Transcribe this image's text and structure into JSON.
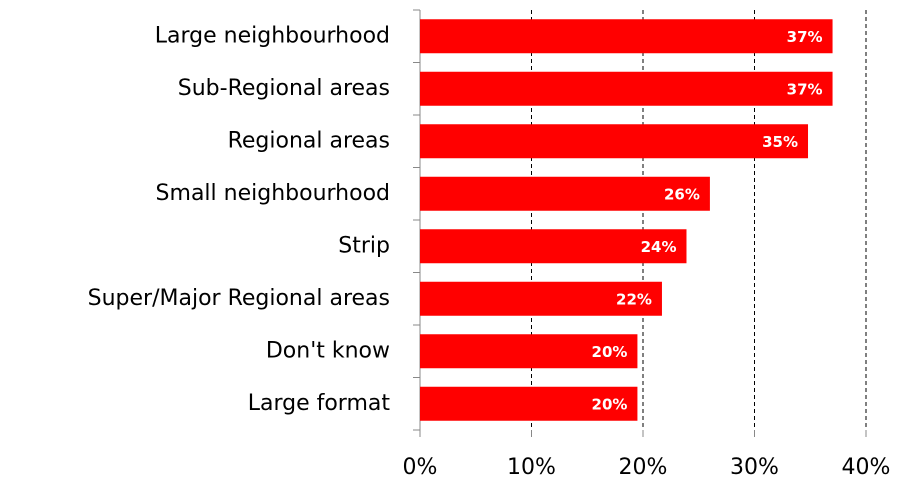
{
  "chart_data": {
    "type": "bar",
    "orientation": "horizontal",
    "categories": [
      "Large neighbourhood",
      "Sub-Regional areas",
      "Regional areas",
      "Small neighbourhood",
      "Strip",
      "Super/Major Regional areas",
      "Don't know",
      "Large format"
    ],
    "values": [
      37,
      37,
      34.8,
      26,
      23.9,
      21.7,
      19.5,
      19.5
    ],
    "value_labels": [
      "37%",
      "37%",
      "35%",
      "26%",
      "24%",
      "22%",
      "20%",
      "20%"
    ],
    "color": "#ff0000",
    "xlim": [
      0,
      40
    ],
    "xticks": [
      {
        "value": 0,
        "label": "0%"
      },
      {
        "value": 10,
        "label": "10%"
      },
      {
        "value": 20,
        "label": "20%"
      },
      {
        "value": 30,
        "label": "30%"
      },
      {
        "value": 40,
        "label": "40%"
      }
    ],
    "grid": true
  }
}
